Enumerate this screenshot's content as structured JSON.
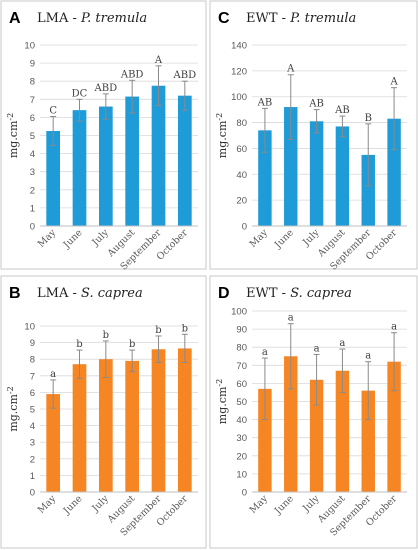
{
  "colors": {
    "blue": "#1f9bd7",
    "orange": "#f68624"
  },
  "chart_data": [
    {
      "type": "bar",
      "panel_letter": "A",
      "title_prefix": "LMA - ",
      "title_species": "P. tremula",
      "ylabel": "mg.cm",
      "ylabel_sup": "-2",
      "ylim": [
        0,
        10
      ],
      "yticks": [
        0,
        1,
        2,
        3,
        4,
        5,
        6,
        7,
        8,
        9,
        10
      ],
      "categories": [
        "May",
        "June",
        "July",
        "August",
        "September",
        "October"
      ],
      "values": [
        5.25,
        6.4,
        6.6,
        7.15,
        7.75,
        7.2
      ],
      "errors": [
        0.8,
        0.6,
        0.7,
        0.9,
        1.1,
        0.8
      ],
      "labels": [
        "C",
        "DC",
        "ABD",
        "ABD",
        "A",
        "ABD"
      ],
      "color": "#1f9bd7",
      "grid": true
    },
    {
      "type": "bar",
      "panel_letter": "C",
      "title_prefix": "EWT - ",
      "title_species": "P. tremula",
      "ylabel": "mg.cm",
      "ylabel_sup": "-2",
      "ylim": [
        0,
        140
      ],
      "yticks": [
        0,
        20,
        40,
        60,
        80,
        100,
        120,
        140
      ],
      "categories": [
        "May",
        "June",
        "July",
        "August",
        "September",
        "October"
      ],
      "values": [
        74,
        92,
        81,
        77,
        55,
        83
      ],
      "errors": [
        17,
        25,
        9,
        8,
        24,
        24
      ],
      "labels": [
        "AB",
        "A",
        "AB",
        "AB",
        "B",
        "A"
      ],
      "color": "#1f9bd7",
      "grid": true
    },
    {
      "type": "bar",
      "panel_letter": "B",
      "title_prefix": "LMA - ",
      "title_species": "S. caprea",
      "ylabel": "mg.cm",
      "ylabel_sup": "-2",
      "ylim": [
        0,
        10
      ],
      "yticks": [
        0,
        1,
        2,
        3,
        4,
        5,
        6,
        7,
        8,
        9,
        10
      ],
      "categories": [
        "May",
        "June",
        "July",
        "August",
        "September",
        "October"
      ],
      "values": [
        5.9,
        7.7,
        8.0,
        7.9,
        8.6,
        8.65
      ],
      "errors": [
        0.85,
        0.85,
        1.1,
        0.65,
        0.8,
        0.85
      ],
      "labels": [
        "a",
        "b",
        "b",
        "b",
        "b",
        "b"
      ],
      "color": "#f68624",
      "grid": true
    },
    {
      "type": "bar",
      "panel_letter": "D",
      "title_prefix": "EWT - ",
      "title_species": "S. caprea",
      "ylabel": "mg.cm",
      "ylabel_sup": "-2",
      "ylim": [
        0,
        100
      ],
      "yticks": [
        0,
        10,
        20,
        30,
        40,
        50,
        60,
        70,
        80,
        90,
        100
      ],
      "categories": [
        "May",
        "June",
        "July",
        "August",
        "September",
        "October"
      ],
      "values": [
        57,
        75,
        62,
        67,
        56,
        72
      ],
      "errors": [
        17,
        18,
        14,
        12,
        16,
        16
      ],
      "labels": [
        "a",
        "a",
        "a",
        "a",
        "a",
        "a"
      ],
      "color": "#f68624",
      "grid": true
    }
  ]
}
